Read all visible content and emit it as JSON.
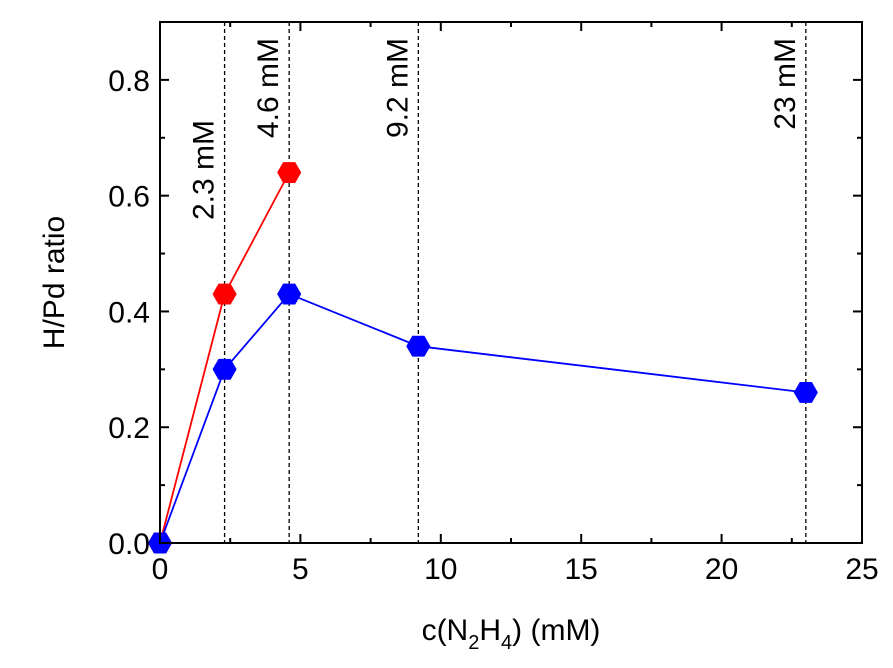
{
  "chart_data": {
    "type": "line",
    "xlabel": {
      "pre": "c(N",
      "sub1": "2",
      "mid": "H",
      "sub2": "4",
      "post": ") (mM)"
    },
    "ylabel": "H/Pd ratio",
    "xlim": [
      0,
      25
    ],
    "ylim": [
      0,
      0.9
    ],
    "xticks": [
      0,
      5,
      10,
      15,
      20,
      25
    ],
    "xtick_labels": [
      "0",
      "5",
      "10",
      "15",
      "20",
      "25"
    ],
    "yticks": [
      0.0,
      0.2,
      0.4,
      0.6,
      0.8
    ],
    "ytick_labels": [
      "0.0",
      "0.2",
      "0.4",
      "0.6",
      "0.8"
    ],
    "grid": false,
    "marker": "hexagon",
    "series": [
      {
        "color": "#ff0000",
        "x": [
          0,
          2.3,
          4.6
        ],
        "y": [
          0.0,
          0.43,
          0.64
        ]
      },
      {
        "color": "#0000ff",
        "x": [
          0,
          2.3,
          4.6,
          9.2,
          23
        ],
        "y": [
          0.0,
          0.3,
          0.43,
          0.34,
          0.26
        ]
      }
    ],
    "reference_lines": [
      {
        "x": 2.3,
        "label": "2.3 mM"
      },
      {
        "x": 4.6,
        "label": "4.6 mM"
      },
      {
        "x": 9.2,
        "label": "9.2 mM"
      },
      {
        "x": 23,
        "label": "23 mM"
      }
    ]
  }
}
